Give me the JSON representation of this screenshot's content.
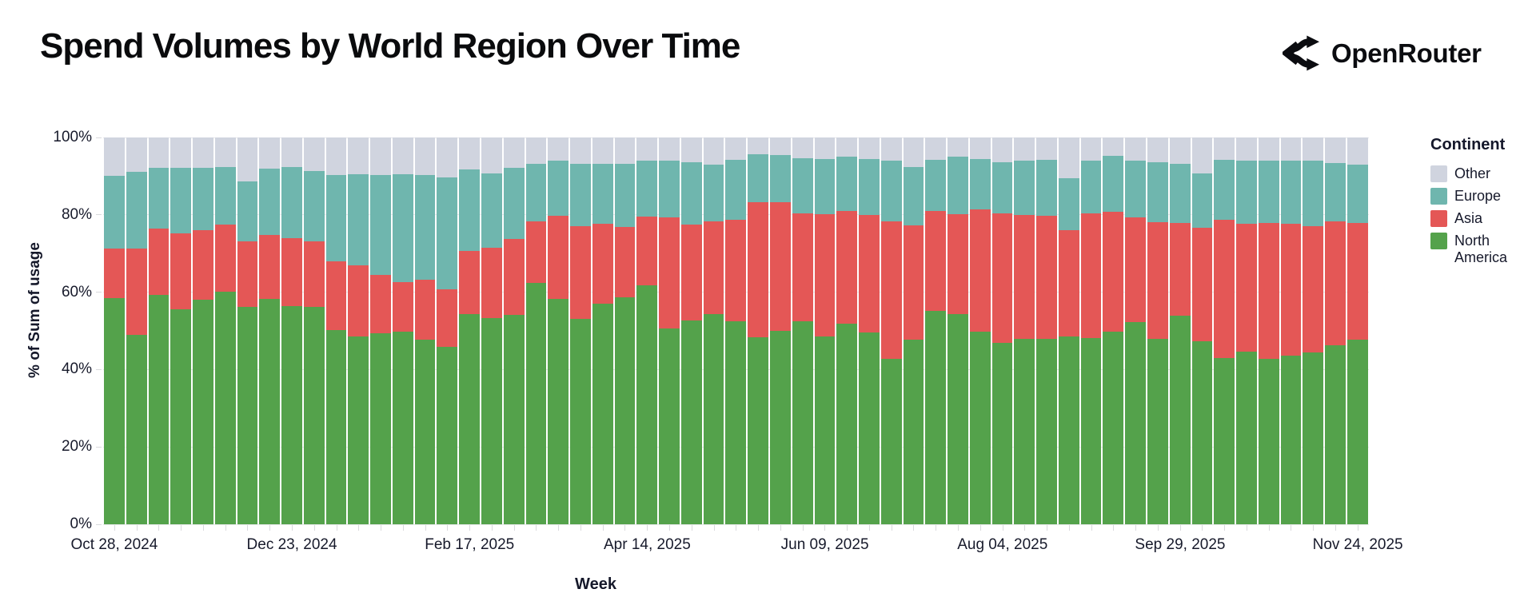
{
  "header": {
    "title": "Spend Volumes by World Region Over Time",
    "brand": "OpenRouter"
  },
  "chart_data": {
    "type": "bar",
    "stacked": true,
    "normalized_100pct": true,
    "title": "Spend Volumes by World Region Over Time",
    "xlabel": "Week",
    "ylabel": "% of Sum of usage",
    "ylim": [
      0,
      100
    ],
    "grid": true,
    "y_tick_labels": [
      "0%",
      "20%",
      "40%",
      "60%",
      "80%",
      "100%"
    ],
    "y_tick_values": [
      0,
      20,
      40,
      60,
      80,
      100
    ],
    "x_tick_labels": [
      "Oct 28, 2024",
      "Dec 23, 2024",
      "Feb 17, 2025",
      "Apr 14, 2025",
      "Jun 09, 2025",
      "Aug 04, 2025",
      "Sep 29, 2025",
      "Nov 24, 2025"
    ],
    "x_tick_every": 8,
    "legend_title": "Continent",
    "legend_position": "right",
    "legend_order": [
      "Other",
      "Europe",
      "Asia",
      "North America"
    ],
    "categories": [
      "Oct 28, 2024",
      "Nov 04, 2024",
      "Nov 11, 2024",
      "Nov 18, 2024",
      "Nov 25, 2024",
      "Dec 02, 2024",
      "Dec 09, 2024",
      "Dec 16, 2024",
      "Dec 23, 2024",
      "Dec 30, 2024",
      "Jan 06, 2025",
      "Jan 13, 2025",
      "Jan 20, 2025",
      "Jan 27, 2025",
      "Feb 03, 2025",
      "Feb 10, 2025",
      "Feb 17, 2025",
      "Feb 24, 2025",
      "Mar 03, 2025",
      "Mar 10, 2025",
      "Mar 17, 2025",
      "Mar 24, 2025",
      "Mar 31, 2025",
      "Apr 07, 2025",
      "Apr 14, 2025",
      "Apr 21, 2025",
      "Apr 28, 2025",
      "May 05, 2025",
      "May 12, 2025",
      "May 19, 2025",
      "May 26, 2025",
      "Jun 02, 2025",
      "Jun 09, 2025",
      "Jun 16, 2025",
      "Jun 23, 2025",
      "Jun 30, 2025",
      "Jul 07, 2025",
      "Jul 14, 2025",
      "Jul 21, 2025",
      "Jul 28, 2025",
      "Aug 04, 2025",
      "Aug 11, 2025",
      "Aug 18, 2025",
      "Aug 25, 2025",
      "Sep 01, 2025",
      "Sep 08, 2025",
      "Sep 15, 2025",
      "Sep 22, 2025",
      "Sep 29, 2025",
      "Oct 06, 2025",
      "Oct 13, 2025",
      "Oct 20, 2025",
      "Oct 27, 2025",
      "Nov 03, 2025",
      "Nov 10, 2025",
      "Nov 17, 2025",
      "Nov 24, 2025"
    ],
    "series": [
      {
        "name": "North America",
        "color": "#54a24b",
        "values": [
          58.4,
          49.0,
          59.3,
          55.5,
          58.1,
          60.2,
          56.2,
          58.2,
          56.5,
          56.3,
          50.2,
          48.6,
          49.3,
          49.8,
          47.7,
          45.9,
          54.3,
          53.4,
          54.1,
          62.4,
          58.2,
          53.1,
          57.0,
          58.6,
          61.7,
          50.7,
          52.7,
          54.3,
          52.4,
          48.4,
          50.0,
          52.5,
          48.6,
          51.9,
          49.5,
          42.8,
          47.7,
          55.2,
          54.3,
          49.7,
          46.9,
          47.9,
          47.9,
          48.6,
          48.1,
          49.8,
          52.2,
          47.9,
          53.9,
          47.3,
          42.9,
          44.6,
          42.8,
          43.7,
          44.5,
          46.2,
          47.7
        ]
      },
      {
        "name": "Asia",
        "color": "#e45756",
        "values": [
          12.9,
          22.2,
          17.1,
          19.7,
          17.9,
          17.3,
          17.0,
          16.7,
          17.5,
          16.9,
          17.8,
          18.4,
          15.1,
          12.9,
          15.5,
          14.9,
          16.4,
          18.1,
          19.6,
          15.9,
          21.5,
          23.9,
          20.7,
          18.2,
          17.8,
          28.6,
          24.8,
          24.0,
          26.4,
          34.9,
          33.3,
          27.9,
          31.6,
          29.2,
          30.4,
          35.5,
          29.6,
          25.8,
          25.9,
          31.8,
          33.5,
          32.0,
          31.8,
          27.5,
          32.3,
          30.9,
          27.2,
          30.3,
          23.9,
          29.3,
          35.9,
          33.0,
          35.2,
          33.9,
          32.6,
          32.1,
          30.1
        ]
      },
      {
        "name": "Europe",
        "color": "#6fb6ae",
        "values": [
          18.7,
          20.0,
          15.7,
          17.0,
          16.2,
          14.9,
          15.5,
          17.1,
          18.4,
          18.2,
          22.2,
          23.6,
          25.8,
          27.8,
          27.1,
          28.8,
          21.0,
          19.2,
          18.4,
          14.9,
          14.3,
          16.1,
          15.4,
          16.3,
          14.6,
          14.7,
          16.0,
          14.6,
          15.5,
          12.4,
          12.2,
          14.2,
          14.2,
          14.0,
          14.5,
          15.7,
          15.1,
          13.2,
          14.8,
          12.9,
          13.2,
          14.1,
          14.5,
          13.4,
          13.7,
          14.6,
          14.6,
          15.4,
          15.3,
          14.1,
          15.4,
          16.4,
          16.1,
          16.4,
          17.0,
          15.1,
          15.1
        ]
      },
      {
        "name": "Other",
        "color": "#d0d4df",
        "values": [
          10.0,
          8.8,
          7.9,
          7.8,
          7.8,
          7.6,
          11.3,
          8.0,
          7.6,
          8.6,
          9.8,
          9.4,
          9.8,
          9.5,
          9.7,
          10.4,
          8.3,
          9.3,
          7.9,
          6.8,
          6.0,
          6.9,
          6.9,
          6.9,
          5.9,
          6.0,
          6.5,
          7.1,
          5.7,
          4.3,
          4.5,
          5.4,
          5.6,
          4.9,
          5.6,
          6.0,
          7.6,
          5.8,
          5.0,
          5.6,
          6.4,
          6.0,
          5.8,
          10.5,
          5.9,
          4.7,
          6.0,
          6.4,
          6.9,
          9.3,
          5.8,
          6.0,
          5.9,
          6.0,
          5.9,
          6.6,
          7.1
        ]
      }
    ]
  }
}
